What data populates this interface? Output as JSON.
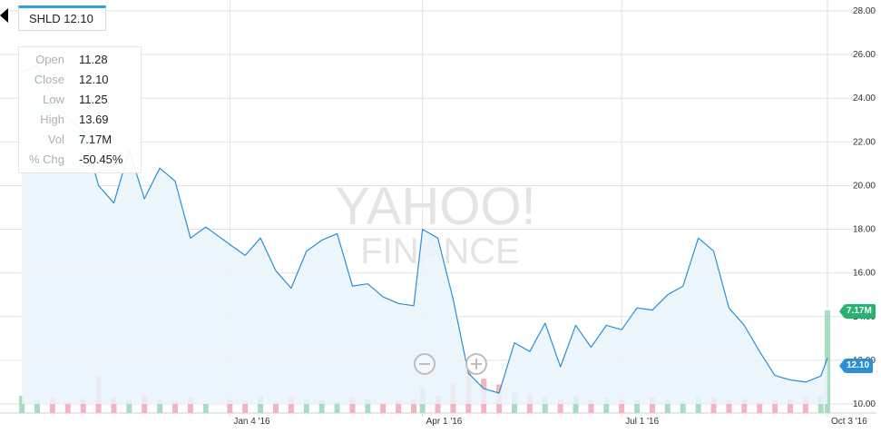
{
  "symbol_tab": {
    "label": "SHLD 12.10"
  },
  "ohlc": {
    "rows": [
      {
        "key": "Open",
        "value": "11.28"
      },
      {
        "key": "Close",
        "value": "12.10"
      },
      {
        "key": "Low",
        "value": "11.25"
      },
      {
        "key": "High",
        "value": "13.69"
      },
      {
        "key": "Vol",
        "value": "7.17M"
      },
      {
        "key": "% Chg",
        "value": "-50.45%"
      }
    ]
  },
  "watermark": {
    "line1": "YAHOO!",
    "line2": "FINANCE"
  },
  "badges": {
    "volume": "7.17M",
    "price": "12.10"
  },
  "icons": {
    "zoom_out": "minus-circle-icon",
    "zoom_in": "plus-circle-icon",
    "back": "caret-left-icon"
  },
  "colors": {
    "price_line": "#2a8fd0",
    "area_fill": "#eaf4fc",
    "volume_up": "#a8dcc0",
    "volume_down": "#f4b3bd",
    "volume_badge": "#26b372",
    "price_badge": "#2c8fd4",
    "grid": "#e2e2e2"
  },
  "chart_data": {
    "type": "line",
    "symbol": "SHLD",
    "ylim": [
      10,
      28
    ],
    "y_ticks": [
      "10.00",
      "12.00",
      "14.00",
      "16.00",
      "18.00",
      "20.00",
      "22.00",
      "24.00",
      "26.00",
      "28.00"
    ],
    "x_ticks": [
      "Jan 4 '16",
      "Apr 1 '16",
      "Jul 1 '16",
      "Oct 3 '16"
    ],
    "grid": true,
    "dates": [
      "2015-10-01",
      "2015-10-08",
      "2015-10-15",
      "2015-10-22",
      "2015-10-29",
      "2015-11-05",
      "2015-11-12",
      "2015-11-19",
      "2015-11-26",
      "2015-12-03",
      "2015-12-10",
      "2015-12-17",
      "2015-12-24",
      "2016-01-04",
      "2016-01-11",
      "2016-01-18",
      "2016-01-25",
      "2016-02-01",
      "2016-02-08",
      "2016-02-15",
      "2016-02-22",
      "2016-02-29",
      "2016-03-07",
      "2016-03-14",
      "2016-03-21",
      "2016-03-28",
      "2016-04-01",
      "2016-04-08",
      "2016-04-15",
      "2016-04-22",
      "2016-04-29",
      "2016-05-06",
      "2016-05-13",
      "2016-05-20",
      "2016-05-27",
      "2016-06-03",
      "2016-06-10",
      "2016-06-17",
      "2016-06-24",
      "2016-07-01",
      "2016-07-08",
      "2016-07-15",
      "2016-07-22",
      "2016-07-29",
      "2016-08-05",
      "2016-08-12",
      "2016-08-19",
      "2016-08-26",
      "2016-09-02",
      "2016-09-09",
      "2016-09-16",
      "2016-09-23",
      "2016-09-30",
      "2016-10-03"
    ],
    "close": [
      25.2,
      25.5,
      24.0,
      23.1,
      22.5,
      20.0,
      19.2,
      21.6,
      19.4,
      20.8,
      20.2,
      17.6,
      18.1,
      17.3,
      16.8,
      17.6,
      16.1,
      15.3,
      17.0,
      17.5,
      17.8,
      15.4,
      15.5,
      14.9,
      14.6,
      14.5,
      18.0,
      17.6,
      14.8,
      11.4,
      10.7,
      10.5,
      12.8,
      12.4,
      13.7,
      11.7,
      13.6,
      12.6,
      13.6,
      13.4,
      14.4,
      14.3,
      15.0,
      15.4,
      17.6,
      17.0,
      14.4,
      13.6,
      12.4,
      11.3,
      11.1,
      11.0,
      11.28,
      12.1
    ],
    "volume_m": [
      1.2,
      0.9,
      1.1,
      0.8,
      1.0,
      2.6,
      1.1,
      0.9,
      1.3,
      1.0,
      0.8,
      1.1,
      0.7,
      1.0,
      0.9,
      1.2,
      0.8,
      1.1,
      1.0,
      0.9,
      0.8,
      1.1,
      1.0,
      0.7,
      0.9,
      1.0,
      1.8,
      1.2,
      2.1,
      3.0,
      2.4,
      2.0,
      1.5,
      1.3,
      1.1,
      1.0,
      1.2,
      0.9,
      1.1,
      1.0,
      0.9,
      1.1,
      1.0,
      0.8,
      1.2,
      1.1,
      0.9,
      1.0,
      0.8,
      0.9,
      1.0,
      1.1,
      1.3,
      7.17
    ]
  }
}
